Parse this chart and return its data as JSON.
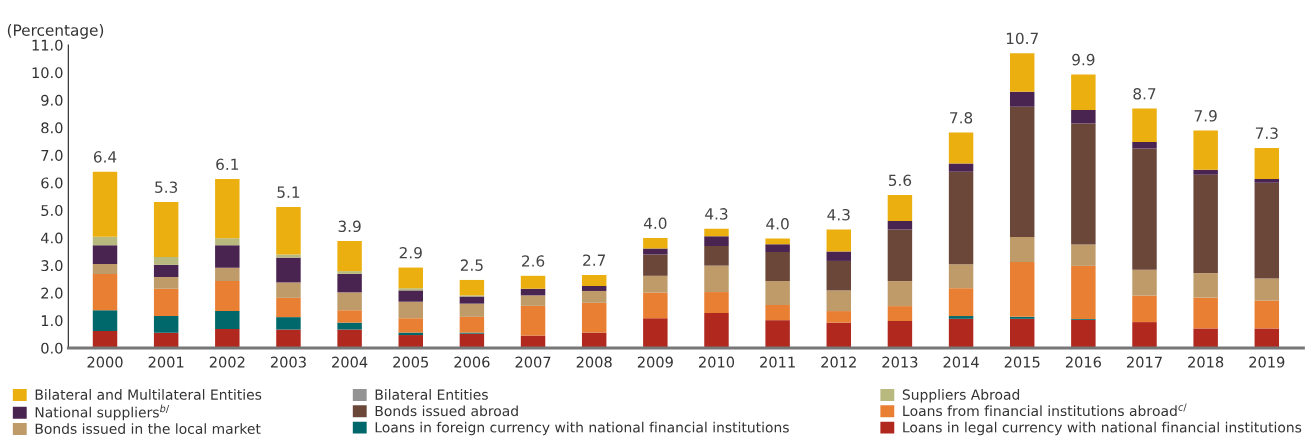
{
  "chart_data": {
    "type": "bar",
    "stacked": true,
    "ylabel": "(Percentage)",
    "categories": [
      "2000",
      "2001",
      "2002",
      "2003",
      "2004",
      "2005",
      "2006",
      "2007",
      "2008",
      "2009",
      "2010",
      "2011",
      "2012",
      "2013",
      "2014",
      "2015",
      "2016",
      "2017",
      "2018",
      "2019"
    ],
    "series": [
      {
        "name": "Loans in legal currency with national financial institutions",
        "color": "#b0281e",
        "values": [
          0.62,
          0.55,
          0.69,
          0.67,
          0.67,
          0.47,
          0.52,
          0.45,
          0.56,
          1.08,
          1.27,
          1.01,
          0.92,
          0.98,
          1.06,
          1.06,
          1.02,
          0.94,
          0.71,
          0.71
        ]
      },
      {
        "name": "Loans in foreign currency with national financial institutions",
        "color": "#00686a",
        "values": [
          0.75,
          0.61,
          0.65,
          0.45,
          0.25,
          0.09,
          0.04,
          null,
          null,
          null,
          null,
          null,
          null,
          null,
          0.1,
          0.07,
          0.03,
          null,
          null,
          null
        ]
      },
      {
        "name": "Loans from financial institutions abroad$^{c/}$",
        "color": "#e87f33",
        "values": [
          1.32,
          0.99,
          1.09,
          0.7,
          0.45,
          0.52,
          0.57,
          1.08,
          1.08,
          0.93,
          0.76,
          0.55,
          0.42,
          0.54,
          1.01,
          1.99,
          1.93,
          0.96,
          1.12,
          1.01
        ]
      },
      {
        "name": "Bonds issued in the local market",
        "color": "#bf9b69",
        "values": [
          0.36,
          0.43,
          0.48,
          0.56,
          0.65,
          0.6,
          0.48,
          0.38,
          0.43,
          0.61,
          0.96,
          0.87,
          0.75,
          0.91,
          0.87,
          0.91,
          0.78,
          0.94,
          0.89,
          0.8
        ]
      },
      {
        "name": "Bonds issued abroad",
        "color": "#6b473a",
        "values": [
          null,
          null,
          null,
          null,
          null,
          null,
          null,
          null,
          null,
          0.77,
          0.71,
          1.05,
          1.07,
          1.87,
          3.36,
          4.73,
          4.39,
          4.4,
          3.57,
          3.48
        ]
      },
      {
        "name": "National suppliers$^{b/}$",
        "color": "#4a2451",
        "values": [
          0.68,
          0.44,
          0.82,
          0.9,
          0.67,
          0.41,
          0.26,
          0.24,
          0.18,
          0.22,
          0.36,
          0.29,
          0.34,
          0.31,
          0.3,
          0.54,
          0.49,
          0.24,
          0.18,
          0.13
        ]
      },
      {
        "name": "Bilateral Entities",
        "color": "#939393",
        "values": [
          null,
          null,
          null,
          null,
          null,
          null,
          null,
          null,
          null,
          null,
          null,
          null,
          null,
          null,
          null,
          null,
          null,
          null,
          null,
          null
        ]
      },
      {
        "name": "Suppliers Abroad",
        "color": "#b8b97e",
        "values": [
          0.31,
          0.28,
          0.25,
          0.11,
          0.1,
          0.08,
          0.04,
          null,
          null,
          null,
          null,
          null,
          null,
          null,
          null,
          null,
          null,
          null,
          null,
          null
        ]
      },
      {
        "name": "Bilateral and Multilateral Entities",
        "color": "#ebb010",
        "values": [
          2.36,
          2.0,
          2.15,
          1.73,
          1.09,
          0.75,
          0.56,
          0.47,
          0.4,
          0.38,
          0.27,
          0.2,
          0.8,
          0.94,
          1.12,
          1.4,
          1.29,
          1.21,
          1.42,
          1.13
        ]
      }
    ],
    "totals": [
      "6.4",
      "5.3",
      "6.1",
      "5.1",
      "3.9",
      "2.9",
      "2.5",
      "2.6",
      "2.7",
      "4.0",
      "4.3",
      "4.0",
      "4.3",
      "5.6",
      "7.8",
      "10.7",
      "9.9",
      "8.7",
      "7.9",
      "7.3"
    ],
    "ylim": [
      0,
      11
    ],
    "yticks": [
      {
        "value": 0,
        "label": "0.0"
      },
      {
        "value": 1,
        "label": "1.0"
      },
      {
        "value": 2,
        "label": "2.0"
      },
      {
        "value": 3,
        "label": "3.0"
      },
      {
        "value": 4,
        "label": "4.0"
      },
      {
        "value": 5,
        "label": "5.0"
      },
      {
        "value": 6,
        "label": "6.0"
      },
      {
        "value": 7,
        "label": "7.0"
      },
      {
        "value": 8,
        "label": "8.0"
      },
      {
        "value": 9,
        "label": "9.0"
      },
      {
        "value": 10,
        "label": "10.0"
      },
      {
        "value": 11,
        "label": "11.0"
      }
    ],
    "grid": false,
    "legend": "bottom"
  }
}
